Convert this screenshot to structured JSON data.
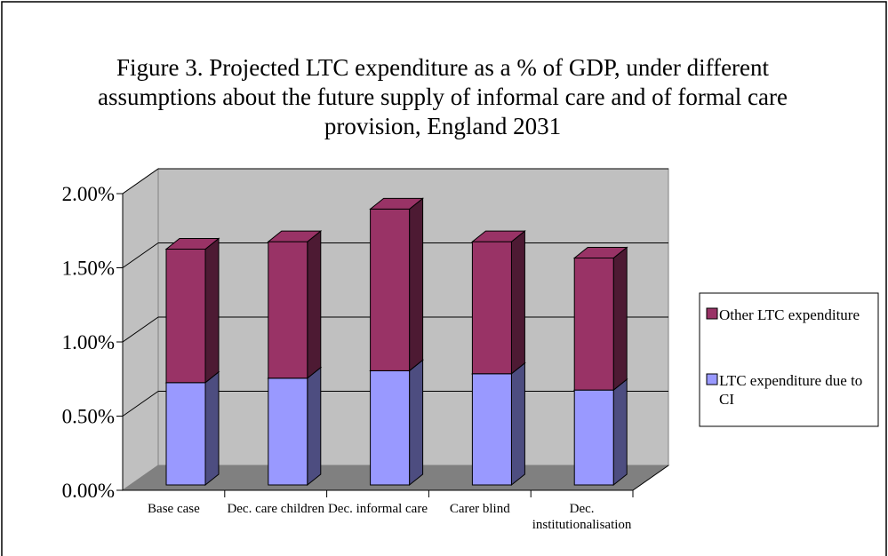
{
  "chart_data": {
    "type": "bar3d_stacked",
    "title": "Figure 3. Projected LTC expenditure as a % of GDP, under different assumptions about the future supply of informal care and of formal care provision, England 2031",
    "categories": [
      "Base case",
      "Dec. care children",
      "Dec. informal care",
      "Carer blind",
      "Dec. institutionalisation"
    ],
    "series": [
      {
        "name": "LTC expenditure due to CI",
        "color": "#9999ff",
        "side": "#4d4d80",
        "values": [
          0.69,
          0.72,
          0.77,
          0.75,
          0.64
        ]
      },
      {
        "name": "Other LTC expenditure",
        "color": "#993366",
        "side": "#4d1a33",
        "values": [
          0.9,
          0.92,
          1.09,
          0.89,
          0.89
        ]
      }
    ],
    "ylim": [
      0,
      2
    ],
    "yticks": [
      {
        "value": 0,
        "label": "0.00%"
      },
      {
        "value": 0.5,
        "label": "0.50%"
      },
      {
        "value": 1,
        "label": "1.00%"
      },
      {
        "value": 1.5,
        "label": "1.50%"
      },
      {
        "value": 2,
        "label": "2.00%"
      }
    ],
    "grid": true,
    "legend": "right"
  }
}
